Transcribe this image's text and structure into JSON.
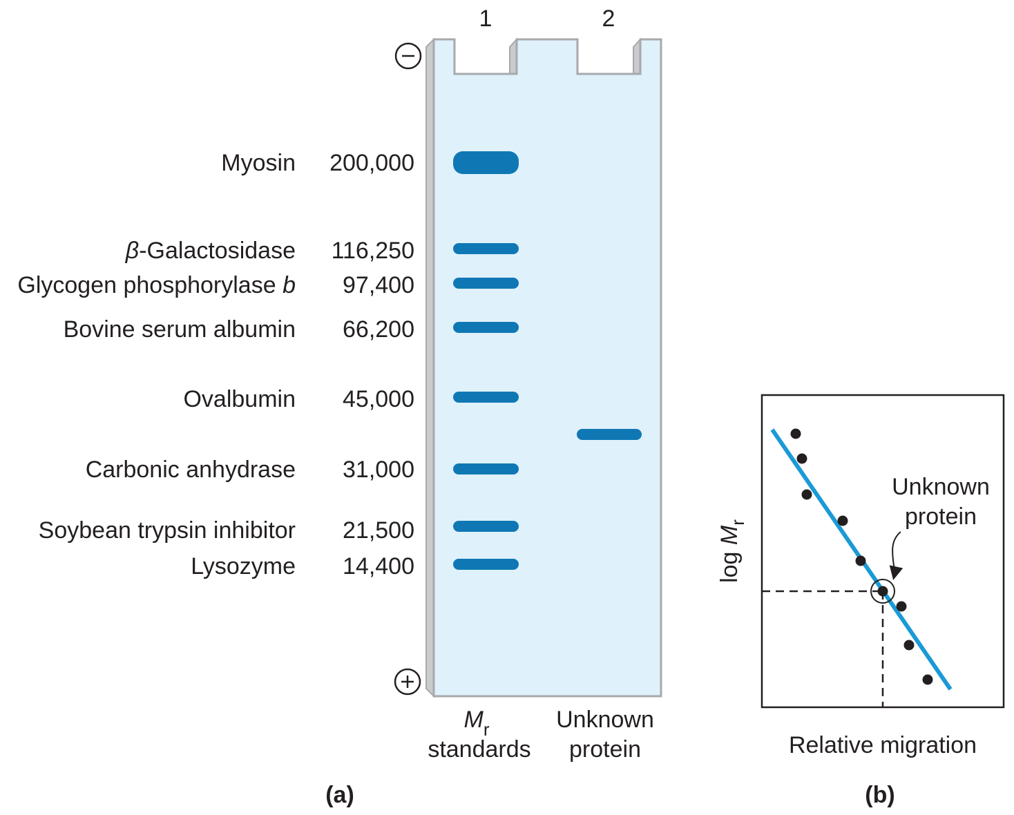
{
  "panel_a": {
    "label": "(a)",
    "lanes": [
      {
        "number": "1",
        "caption_symbol": "M",
        "caption_subscript": "r",
        "caption_line2": "standards"
      },
      {
        "number": "2",
        "caption_line1": "Unknown",
        "caption_line2": "protein"
      }
    ],
    "electrode_negative": "−",
    "electrode_positive": "+",
    "gel_color": "#dff1fb",
    "band_color": "#0f78b4",
    "standards": [
      {
        "name": "Myosin",
        "mr": "200,000"
      },
      {
        "name_greek": "β",
        "name": "-Galactosidase",
        "mr": "116,250"
      },
      {
        "name": "Glycogen phosphorylase ",
        "name_italic": "b",
        "mr": "97,400"
      },
      {
        "name": "Bovine serum albumin",
        "mr": "66,200"
      },
      {
        "name": "Ovalbumin",
        "mr": "45,000"
      },
      {
        "name": "Carbonic anhydrase",
        "mr": "31,000"
      },
      {
        "name": "Soybean trypsin inhibitor",
        "mr": "21,500"
      },
      {
        "name": "Lysozyme",
        "mr": "14,400"
      }
    ]
  },
  "panel_b": {
    "label": "(b)",
    "ylabel_prefix": "log ",
    "ylabel_symbol": "M",
    "ylabel_subscript": "r",
    "xlabel": "Relative migration",
    "annotation_line1": "Unknown",
    "annotation_line2": "protein",
    "line_color": "#1a9ad6"
  }
}
